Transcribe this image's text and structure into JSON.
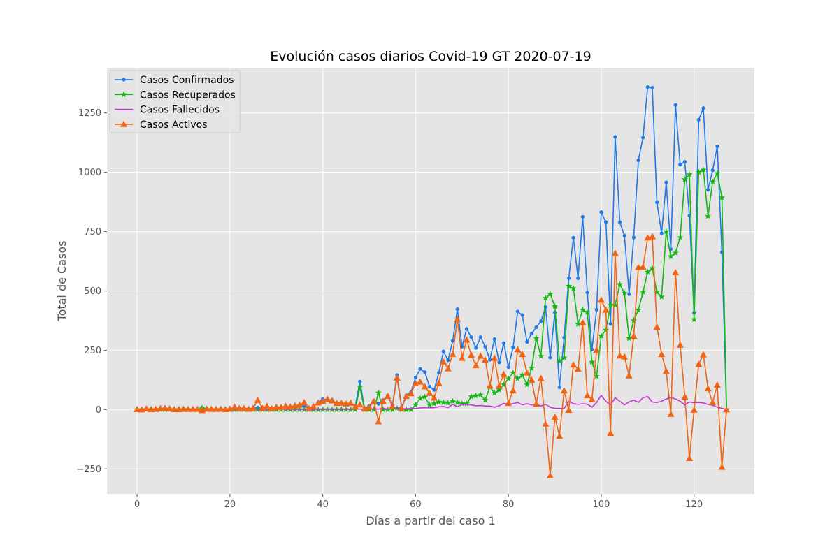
{
  "chart_data": {
    "type": "line",
    "title": "Evolución casos diarios Covid-19 GT 2020-07-19",
    "xlabel": "Días a partir del caso 1",
    "ylabel": "Total de Casos",
    "xlim": [
      -6.5,
      133
    ],
    "ylim": [
      -355,
      1440
    ],
    "xticks": [
      0,
      20,
      40,
      60,
      80,
      100,
      120
    ],
    "yticks": [
      -250,
      0,
      250,
      500,
      750,
      1000,
      1250
    ],
    "grid": true,
    "legend_position": "top-left",
    "x": [
      0,
      1,
      2,
      3,
      4,
      5,
      6,
      7,
      8,
      9,
      10,
      11,
      12,
      13,
      14,
      15,
      16,
      17,
      18,
      19,
      20,
      21,
      22,
      23,
      24,
      25,
      26,
      27,
      28,
      29,
      30,
      31,
      32,
      33,
      34,
      35,
      36,
      37,
      38,
      39,
      40,
      41,
      42,
      43,
      44,
      45,
      46,
      47,
      48,
      49,
      50,
      51,
      52,
      53,
      54,
      55,
      56,
      57,
      58,
      59,
      60,
      61,
      62,
      63,
      64,
      65,
      66,
      67,
      68,
      69,
      70,
      71,
      72,
      73,
      74,
      75,
      76,
      77,
      78,
      79,
      80,
      81,
      82,
      83,
      84,
      85,
      86,
      87,
      88,
      89,
      90,
      91,
      92,
      93,
      94,
      95,
      96,
      97,
      98,
      99,
      100,
      101,
      102,
      103,
      104,
      105,
      106,
      107,
      108,
      109,
      110,
      111,
      112,
      113,
      114,
      115,
      116,
      117,
      118,
      119,
      120,
      121,
      122,
      123,
      124,
      125,
      126,
      127
    ],
    "series": [
      {
        "name": "Casos Confirmados",
        "color": "#1f77e8",
        "marker": "circle",
        "values": [
          1,
          0,
          4,
          1,
          2,
          5,
          6,
          4,
          1,
          1,
          2,
          2,
          2,
          2,
          4,
          4,
          2,
          2,
          3,
          1,
          3,
          11,
          5,
          6,
          3,
          6,
          8,
          6,
          10,
          5,
          11,
          10,
          15,
          12,
          13,
          15,
          15,
          5,
          14,
          30,
          45,
          40,
          40,
          27,
          28,
          25,
          28,
          15,
          118,
          4,
          15,
          38,
          24,
          40,
          59,
          19,
          145,
          10,
          60,
          73,
          135,
          171,
          158,
          97,
          83,
          155,
          245,
          208,
          290,
          423,
          265,
          340,
          305,
          260,
          305,
          265,
          210,
          297,
          199,
          280,
          179,
          262,
          413,
          398,
          285,
          320,
          347,
          372,
          432,
          219,
          409,
          94,
          304,
          553,
          724,
          553,
          812,
          493,
          253,
          421,
          832,
          790,
          361,
          1149,
          789,
          733,
          486,
          725,
          1050,
          1146,
          1359,
          1356,
          873,
          743,
          957,
          676,
          1283,
          1032,
          1044,
          817,
          408,
          1221,
          1270,
          926,
          1008,
          1109,
          663,
          0
        ]
      },
      {
        "name": "Casos Recuperados",
        "color": "#13b813",
        "marker": "star",
        "values": [
          0,
          0,
          0,
          0,
          0,
          0,
          0,
          0,
          0,
          0,
          0,
          0,
          0,
          0,
          7,
          1,
          0,
          0,
          0,
          0,
          0,
          0,
          0,
          0,
          0,
          0,
          0,
          0,
          0,
          0,
          0,
          0,
          0,
          0,
          0,
          0,
          0,
          0,
          0,
          0,
          0,
          0,
          0,
          0,
          0,
          0,
          0,
          0,
          95,
          0,
          0,
          0,
          71,
          0,
          0,
          0,
          5,
          0,
          0,
          0,
          20,
          47,
          53,
          20,
          25,
          32,
          30,
          27,
          35,
          30,
          25,
          25,
          55,
          58,
          62,
          40,
          95,
          70,
          83,
          105,
          130,
          155,
          130,
          145,
          105,
          175,
          300,
          225,
          470,
          487,
          435,
          205,
          219,
          520,
          510,
          360,
          420,
          410,
          200,
          140,
          310,
          335,
          440,
          440,
          527,
          490,
          300,
          375,
          420,
          495,
          580,
          595,
          495,
          475,
          750,
          645,
          660,
          725,
          970,
          990,
          380,
          1000,
          1010,
          815,
          960,
          995,
          893,
          0
        ]
      },
      {
        "name": "Casos Fallecidos",
        "color": "#c733d9",
        "marker": "none",
        "values": [
          0,
          0,
          0,
          0,
          0,
          0,
          0,
          0,
          0,
          0,
          0,
          0,
          0,
          0,
          0,
          0,
          0,
          0,
          0,
          0,
          0,
          0,
          0,
          0,
          0,
          0,
          0,
          0,
          0,
          0,
          0,
          0,
          0,
          0,
          0,
          0,
          0,
          0,
          0,
          1,
          2,
          1,
          2,
          0,
          0,
          2,
          1,
          3,
          2,
          0,
          1,
          3,
          2,
          5,
          2,
          5,
          6,
          5,
          3,
          5,
          5,
          7,
          8,
          8,
          8,
          12,
          13,
          8,
          22,
          12,
          23,
          21,
          20,
          16,
          17,
          15,
          15,
          10,
          16,
          26,
          22,
          25,
          30,
          20,
          25,
          20,
          23,
          15,
          22,
          10,
          5,
          5,
          5,
          35,
          25,
          22,
          25,
          23,
          10,
          30,
          60,
          35,
          20,
          50,
          35,
          20,
          32,
          40,
          30,
          50,
          55,
          32,
          30,
          35,
          45,
          50,
          45,
          35,
          20,
          32,
          29,
          30,
          28,
          22,
          18,
          10,
          5,
          0
        ]
      },
      {
        "name": "Casos Activos",
        "color": "#f06414",
        "marker": "triangle",
        "values": [
          1,
          0,
          4,
          1,
          2,
          5,
          6,
          4,
          1,
          1,
          2,
          2,
          2,
          2,
          -3,
          3,
          2,
          2,
          3,
          1,
          3,
          11,
          5,
          6,
          3,
          6,
          40,
          6,
          15,
          5,
          11,
          10,
          15,
          12,
          17,
          20,
          30,
          5,
          14,
          29,
          35,
          45,
          38,
          27,
          28,
          25,
          28,
          12,
          21,
          4,
          10,
          35,
          -50,
          35,
          57,
          14,
          134,
          5,
          57,
          68,
          110,
          117,
          97,
          69,
          50,
          111,
          202,
          173,
          233,
          381,
          217,
          294,
          230,
          186,
          226,
          210,
          100,
          217,
          100,
          149,
          27,
          80,
          253,
          233,
          155,
          125,
          24,
          132,
          -60,
          -278,
          -31,
          -111,
          80,
          -2,
          189,
          171,
          367,
          60,
          43,
          251,
          462,
          420,
          -99,
          659,
          227,
          223,
          143,
          310,
          600,
          601,
          724,
          729,
          348,
          233,
          162,
          -19,
          578,
          272,
          54,
          -205,
          -1,
          191,
          232,
          89,
          30,
          104,
          -242,
          0
        ]
      }
    ]
  }
}
